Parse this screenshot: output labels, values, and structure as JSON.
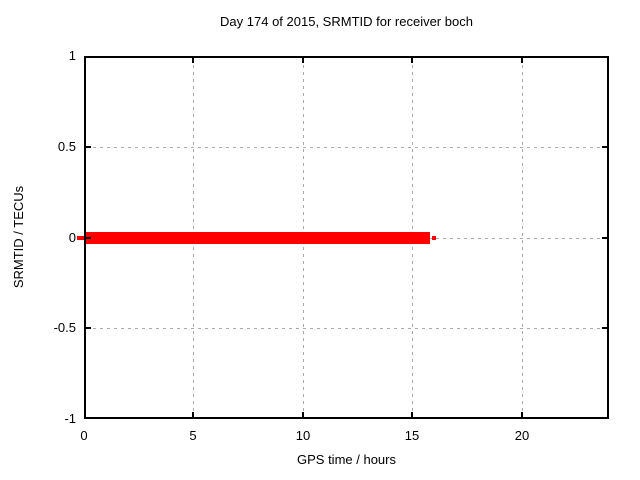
{
  "chart_data": {
    "type": "line",
    "title": "Day 174 of 2015, SRMTID for receiver boch",
    "xlabel": "GPS time / hours",
    "ylabel": "SRMTID / TECUs",
    "xlim": [
      0,
      24
    ],
    "ylim": [
      -1,
      1
    ],
    "xticks": [
      {
        "value": 0,
        "label": "0"
      },
      {
        "value": 5,
        "label": "5"
      },
      {
        "value": 10,
        "label": "10"
      },
      {
        "value": 15,
        "label": "15"
      },
      {
        "value": 20,
        "label": "20"
      }
    ],
    "yticks": [
      {
        "value": 1,
        "label": "1"
      },
      {
        "value": 0.5,
        "label": "0.5"
      },
      {
        "value": 0,
        "label": "0"
      },
      {
        "value": -0.5,
        "label": "-0.5"
      },
      {
        "value": -1,
        "label": "-1"
      }
    ],
    "grid": "dashed",
    "legend": "none",
    "colors": {
      "line": "#ff0000",
      "grid": "#a9a9a9",
      "frame": "#000000",
      "text": "#000000",
      "background": "#ffffff"
    },
    "series": [
      {
        "name": "SRMTID",
        "color": "#ff0000",
        "y_constant": 0,
        "x_start": 0,
        "x_end": 15.8,
        "thin_lead_x": [
          -0.3,
          0
        ],
        "thin_tail_x": [
          15.9,
          16.1
        ]
      }
    ]
  }
}
